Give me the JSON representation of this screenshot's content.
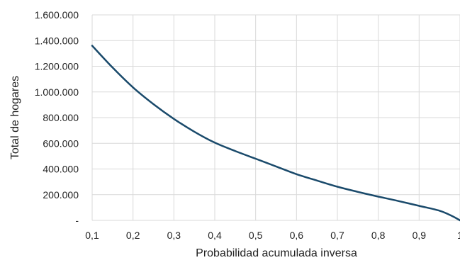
{
  "chart_data": {
    "type": "line",
    "xlabel": "Probabilidad acumulada inversa",
    "ylabel": "Total de hogares",
    "xlim": [
      0.1,
      1.0
    ],
    "ylim": [
      0,
      1600000
    ],
    "x_ticks": [
      {
        "value": 0.1,
        "label": "0,1"
      },
      {
        "value": 0.2,
        "label": "0,2"
      },
      {
        "value": 0.3,
        "label": "0,3"
      },
      {
        "value": 0.4,
        "label": "0,4"
      },
      {
        "value": 0.5,
        "label": "0,5"
      },
      {
        "value": 0.6,
        "label": "0,6"
      },
      {
        "value": 0.7,
        "label": "0,7"
      },
      {
        "value": 0.8,
        "label": "0,8"
      },
      {
        "value": 0.9,
        "label": "0,9"
      },
      {
        "value": 1.0,
        "label": "1"
      }
    ],
    "y_ticks": [
      {
        "value": 0,
        "label": "-"
      },
      {
        "value": 200000,
        "label": "200.000"
      },
      {
        "value": 400000,
        "label": "400.000"
      },
      {
        "value": 600000,
        "label": "600.000"
      },
      {
        "value": 800000,
        "label": "800.000"
      },
      {
        "value": 1000000,
        "label": "1.000.000"
      },
      {
        "value": 1200000,
        "label": "1.200.000"
      },
      {
        "value": 1400000,
        "label": "1.400.000"
      },
      {
        "value": 1600000,
        "label": "1.600.000"
      }
    ],
    "grid": true,
    "series": [
      {
        "color": "#1a4a6b",
        "points": [
          {
            "x": 0.1,
            "y": 1360000
          },
          {
            "x": 0.15,
            "y": 1190000
          },
          {
            "x": 0.2,
            "y": 1035000
          },
          {
            "x": 0.25,
            "y": 905000
          },
          {
            "x": 0.3,
            "y": 790000
          },
          {
            "x": 0.35,
            "y": 690000
          },
          {
            "x": 0.4,
            "y": 605000
          },
          {
            "x": 0.45,
            "y": 540000
          },
          {
            "x": 0.5,
            "y": 480000
          },
          {
            "x": 0.55,
            "y": 420000
          },
          {
            "x": 0.6,
            "y": 360000
          },
          {
            "x": 0.65,
            "y": 310000
          },
          {
            "x": 0.7,
            "y": 262000
          },
          {
            "x": 0.75,
            "y": 222000
          },
          {
            "x": 0.8,
            "y": 185000
          },
          {
            "x": 0.85,
            "y": 150000
          },
          {
            "x": 0.9,
            "y": 113000
          },
          {
            "x": 0.95,
            "y": 75000
          },
          {
            "x": 0.98,
            "y": 35000
          },
          {
            "x": 1.0,
            "y": 0
          }
        ]
      }
    ]
  }
}
